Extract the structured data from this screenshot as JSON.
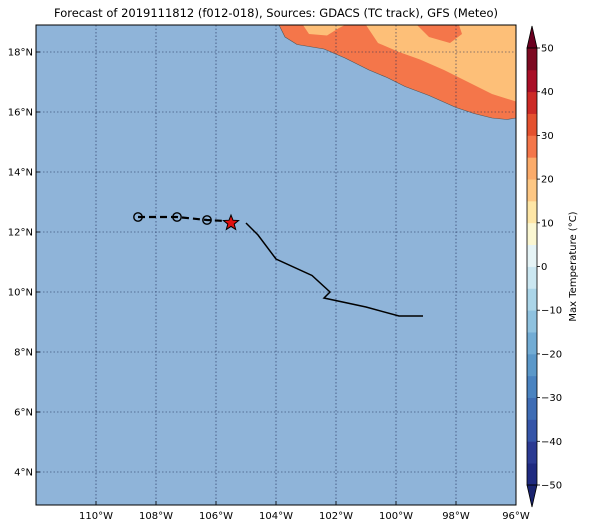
{
  "title": "Forecast of 2019111812 (f012-018), Sources: GDACS (TC track), GFS (Meteo)",
  "map": {
    "lon_range": [
      -112,
      -96
    ],
    "lat_range": [
      2.9,
      18.9
    ],
    "lon_ticks": [
      {
        "value": -110,
        "label": "110°W"
      },
      {
        "value": -108,
        "label": "108°W"
      },
      {
        "value": -106,
        "label": "106°W"
      },
      {
        "value": -104,
        "label": "104°W"
      },
      {
        "value": -102,
        "label": "102°W"
      },
      {
        "value": -100,
        "label": "100°W"
      },
      {
        "value": -98,
        "label": "98°W"
      },
      {
        "value": -96,
        "label": "96°W"
      }
    ],
    "lat_ticks": [
      {
        "value": 4,
        "label": "4°N"
      },
      {
        "value": 6,
        "label": "6°N"
      },
      {
        "value": 8,
        "label": "8°N"
      },
      {
        "value": 10,
        "label": "10°N"
      },
      {
        "value": 12,
        "label": "12°N"
      },
      {
        "value": 14,
        "label": "14°N"
      },
      {
        "value": 16,
        "label": "16°N"
      },
      {
        "value": 18,
        "label": "18°N"
      }
    ],
    "ocean_color": "#8fb4d9",
    "grid": true
  },
  "colorbar": {
    "label": "Max Temperature (°C)",
    "ticks": [
      {
        "value": 50,
        "label": "50"
      },
      {
        "value": 40,
        "label": "40"
      },
      {
        "value": 30,
        "label": "30"
      },
      {
        "value": 20,
        "label": "20"
      },
      {
        "value": 10,
        "label": "10"
      },
      {
        "value": 0,
        "label": "0"
      },
      {
        "value": -10,
        "label": "−10"
      },
      {
        "value": -20,
        "label": "−20"
      },
      {
        "value": -30,
        "label": "−30"
      },
      {
        "value": -40,
        "label": "−40"
      },
      {
        "value": -50,
        "label": "−50"
      }
    ],
    "levels": [
      {
        "from": -50,
        "to": -45,
        "color": "#1f2a80"
      },
      {
        "from": -45,
        "to": -40,
        "color": "#2b3a92"
      },
      {
        "from": -40,
        "to": -35,
        "color": "#3555a8"
      },
      {
        "from": -35,
        "to": -30,
        "color": "#3e6cb4"
      },
      {
        "from": -30,
        "to": -25,
        "color": "#4a83c0"
      },
      {
        "from": -25,
        "to": -20,
        "color": "#5b98c9"
      },
      {
        "from": -20,
        "to": -15,
        "color": "#72acd4"
      },
      {
        "from": -15,
        "to": -10,
        "color": "#8fc2df"
      },
      {
        "from": -10,
        "to": -5,
        "color": "#abd5e8"
      },
      {
        "from": -5,
        "to": 0,
        "color": "#cbe7f1"
      },
      {
        "from": 0,
        "to": 5,
        "color": "#e6f4f6"
      },
      {
        "from": 5,
        "to": 10,
        "color": "#fbf7d2"
      },
      {
        "from": 10,
        "to": 15,
        "color": "#fee6a6"
      },
      {
        "from": 15,
        "to": 20,
        "color": "#fdc784"
      },
      {
        "from": 20,
        "to": 25,
        "color": "#fbab6a"
      },
      {
        "from": 25,
        "to": 30,
        "color": "#f4764a"
      },
      {
        "from": 30,
        "to": 35,
        "color": "#e4512f"
      },
      {
        "from": 35,
        "to": 40,
        "color": "#cc2a26"
      },
      {
        "from": 40,
        "to": 45,
        "color": "#a90f27"
      },
      {
        "from": 45,
        "to": 50,
        "color": "#7d0a22"
      }
    ],
    "under_color": "#19236f",
    "over_color": "#6a0020"
  },
  "track": {
    "past": [
      [
        -105.0,
        12.3
      ],
      [
        -104.6,
        11.9
      ],
      [
        -104.0,
        11.1
      ],
      [
        -102.8,
        10.55
      ],
      [
        -102.2,
        10.0
      ],
      [
        -102.4,
        9.8
      ],
      [
        -101.0,
        9.5
      ],
      [
        -99.9,
        9.2
      ],
      [
        -99.1,
        9.2
      ]
    ],
    "forecast": [
      [
        -108.6,
        12.5
      ],
      [
        -107.3,
        12.5
      ],
      [
        -106.3,
        12.4
      ],
      [
        -105.4,
        12.35
      ]
    ],
    "forecast_points": [
      [
        -108.6,
        12.5
      ],
      [
        -107.3,
        12.5
      ],
      [
        -106.3,
        12.4
      ]
    ],
    "current": [
      -105.5,
      12.3
    ],
    "current_color": "#e01010"
  },
  "land": {
    "dry_color": "#fdbf78",
    "hot_color": "#f4764a",
    "coast_outer": [
      [
        -103.9,
        18.9
      ],
      [
        -103.7,
        18.5
      ],
      [
        -103.3,
        18.25
      ],
      [
        -102.4,
        18.1
      ],
      [
        -101.7,
        17.8
      ],
      [
        -100.9,
        17.4
      ],
      [
        -100.3,
        17.15
      ],
      [
        -99.7,
        16.85
      ],
      [
        -98.9,
        16.55
      ],
      [
        -98.0,
        16.15
      ],
      [
        -97.4,
        15.95
      ],
      [
        -96.8,
        15.8
      ],
      [
        -96.3,
        15.75
      ],
      [
        -96.0,
        15.8
      ],
      [
        -96.0,
        18.9
      ]
    ],
    "dry_inner_1": [
      [
        -101.0,
        18.9
      ],
      [
        -100.6,
        18.3
      ],
      [
        -99.9,
        18.0
      ],
      [
        -99.2,
        17.75
      ],
      [
        -98.4,
        17.4
      ],
      [
        -97.6,
        17.0
      ],
      [
        -96.8,
        16.6
      ],
      [
        -96.0,
        16.35
      ],
      [
        -96.0,
        18.9
      ]
    ],
    "dry_inner_2": [
      [
        -103.1,
        18.9
      ],
      [
        -102.9,
        18.6
      ],
      [
        -102.3,
        18.55
      ],
      [
        -101.9,
        18.8
      ],
      [
        -101.7,
        18.9
      ]
    ],
    "hot_patch": [
      [
        -99.3,
        18.9
      ],
      [
        -98.9,
        18.5
      ],
      [
        -98.2,
        18.3
      ],
      [
        -97.8,
        18.6
      ],
      [
        -97.9,
        18.9
      ]
    ]
  }
}
